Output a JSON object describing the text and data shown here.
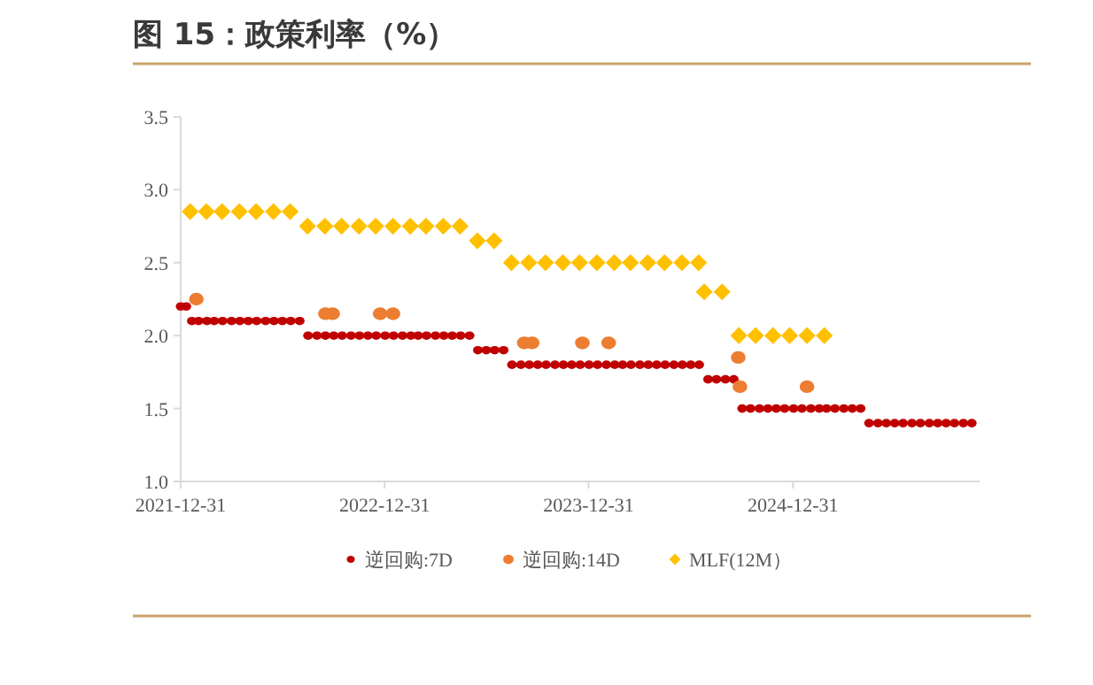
{
  "chart_data": {
    "type": "scatter",
    "title": "图 15：政策利率（%）",
    "xlim": [
      "2021-12-31",
      "2025-11-30"
    ],
    "xticks": [
      "2021-12-31",
      "2022-12-31",
      "2023-12-31",
      "2024-12-31"
    ],
    "ylim": [
      1,
      3.5
    ],
    "yticks": [
      {
        "value": 1,
        "label": "1.0"
      },
      {
        "value": 1.5,
        "label": "1.5"
      },
      {
        "value": 2,
        "label": "2.0"
      },
      {
        "value": 2.5,
        "label": "2.5"
      },
      {
        "value": 3,
        "label": "3.0"
      },
      {
        "value": 3.5,
        "label": "3.5"
      }
    ],
    "grid": false,
    "legend": "bottom",
    "series": [
      {
        "name": "逆回购:7D",
        "color": "#c00000",
        "marker": "circle",
        "x": [
          "2021-12-31",
          "2022-01-10",
          "2022-01-20",
          "2022-02-01",
          "2022-02-16",
          "2022-03-01",
          "2022-03-16",
          "2022-04-01",
          "2022-04-16",
          "2022-05-01",
          "2022-05-16",
          "2022-06-01",
          "2022-06-16",
          "2022-07-01",
          "2022-07-16",
          "2022-08-01",
          "2022-08-16",
          "2022-09-01",
          "2022-09-16",
          "2022-10-01",
          "2022-10-16",
          "2022-11-01",
          "2022-11-16",
          "2022-12-01",
          "2022-12-16",
          "2023-01-01",
          "2023-01-16",
          "2023-02-01",
          "2023-02-16",
          "2023-03-01",
          "2023-03-16",
          "2023-04-01",
          "2023-04-16",
          "2023-05-01",
          "2023-05-16",
          "2023-06-01",
          "2023-06-16",
          "2023-07-01",
          "2023-07-16",
          "2023-08-01",
          "2023-08-16",
          "2023-09-01",
          "2023-09-16",
          "2023-10-01",
          "2023-10-16",
          "2023-11-01",
          "2023-11-16",
          "2023-12-01",
          "2023-12-16",
          "2024-01-01",
          "2024-01-16",
          "2024-02-01",
          "2024-02-16",
          "2024-03-01",
          "2024-03-16",
          "2024-04-01",
          "2024-04-16",
          "2024-05-01",
          "2024-05-16",
          "2024-06-01",
          "2024-06-16",
          "2024-07-01",
          "2024-07-16",
          "2024-08-01",
          "2024-08-16",
          "2024-09-01",
          "2024-09-16",
          "2024-10-01",
          "2024-10-16",
          "2024-11-01",
          "2024-11-16",
          "2024-12-01",
          "2024-12-16",
          "2025-01-01",
          "2025-01-16",
          "2025-02-01",
          "2025-02-16",
          "2025-03-01",
          "2025-03-16",
          "2025-04-01",
          "2025-04-16",
          "2025-05-01",
          "2025-05-16",
          "2025-06-01",
          "2025-06-16",
          "2025-07-01",
          "2025-07-16",
          "2025-08-01",
          "2025-08-16",
          "2025-09-01",
          "2025-09-16",
          "2025-10-01",
          "2025-10-16",
          "2025-11-01",
          "2025-11-16"
        ],
        "values": [
          2.2,
          2.2,
          2.1,
          2.1,
          2.1,
          2.1,
          2.1,
          2.1,
          2.1,
          2.1,
          2.1,
          2.1,
          2.1,
          2.1,
          2.1,
          2.1,
          2.0,
          2.0,
          2.0,
          2.0,
          2.0,
          2.0,
          2.0,
          2.0,
          2.0,
          2.0,
          2.0,
          2.0,
          2.0,
          2.0,
          2.0,
          2.0,
          2.0,
          2.0,
          2.0,
          2.0,
          1.9,
          1.9,
          1.9,
          1.9,
          1.8,
          1.8,
          1.8,
          1.8,
          1.8,
          1.8,
          1.8,
          1.8,
          1.8,
          1.8,
          1.8,
          1.8,
          1.8,
          1.8,
          1.8,
          1.8,
          1.8,
          1.8,
          1.8,
          1.8,
          1.8,
          1.8,
          1.8,
          1.7,
          1.7,
          1.7,
          1.7,
          1.5,
          1.5,
          1.5,
          1.5,
          1.5,
          1.5,
          1.5,
          1.5,
          1.5,
          1.5,
          1.5,
          1.5,
          1.5,
          1.5,
          1.5,
          1.4,
          1.4,
          1.4,
          1.4,
          1.4,
          1.4,
          1.4,
          1.4,
          1.4,
          1.4,
          1.4,
          1.4,
          1.4
        ]
      },
      {
        "name": "逆回购:14D",
        "color": "#ed7d31",
        "marker": "circle",
        "x": [
          "2022-01-28",
          "2022-09-16",
          "2022-09-29",
          "2022-12-23",
          "2023-01-15",
          "2023-09-07",
          "2023-09-21",
          "2023-12-20",
          "2024-02-05",
          "2024-09-24",
          "2024-09-27",
          "2025-01-25"
        ],
        "values": [
          2.25,
          2.15,
          2.15,
          2.15,
          2.15,
          1.95,
          1.95,
          1.95,
          1.95,
          1.85,
          1.65,
          1.65
        ]
      },
      {
        "name": "MLF(12M）",
        "color": "#ffc000",
        "marker": "diamond",
        "x": [
          "2022-01-17",
          "2022-02-15",
          "2022-03-15",
          "2022-04-15",
          "2022-05-15",
          "2022-06-15",
          "2022-07-15",
          "2022-08-15",
          "2022-09-15",
          "2022-10-15",
          "2022-11-15",
          "2022-12-15",
          "2023-01-15",
          "2023-02-15",
          "2023-03-15",
          "2023-04-15",
          "2023-05-15",
          "2023-06-15",
          "2023-07-15",
          "2023-08-15",
          "2023-09-15",
          "2023-10-15",
          "2023-11-15",
          "2023-12-15",
          "2024-01-15",
          "2024-02-15",
          "2024-03-15",
          "2024-04-15",
          "2024-05-15",
          "2024-06-15",
          "2024-07-15",
          "2024-07-25",
          "2024-08-26",
          "2024-09-25",
          "2024-10-25",
          "2024-11-25",
          "2024-12-25",
          "2025-01-25",
          "2025-02-25"
        ],
        "values": [
          2.85,
          2.85,
          2.85,
          2.85,
          2.85,
          2.85,
          2.85,
          2.75,
          2.75,
          2.75,
          2.75,
          2.75,
          2.75,
          2.75,
          2.75,
          2.75,
          2.75,
          2.65,
          2.65,
          2.5,
          2.5,
          2.5,
          2.5,
          2.5,
          2.5,
          2.5,
          2.5,
          2.5,
          2.5,
          2.5,
          2.5,
          2.3,
          2.3,
          2.0,
          2.0,
          2.0,
          2.0,
          2.0,
          2.0
        ]
      }
    ]
  }
}
